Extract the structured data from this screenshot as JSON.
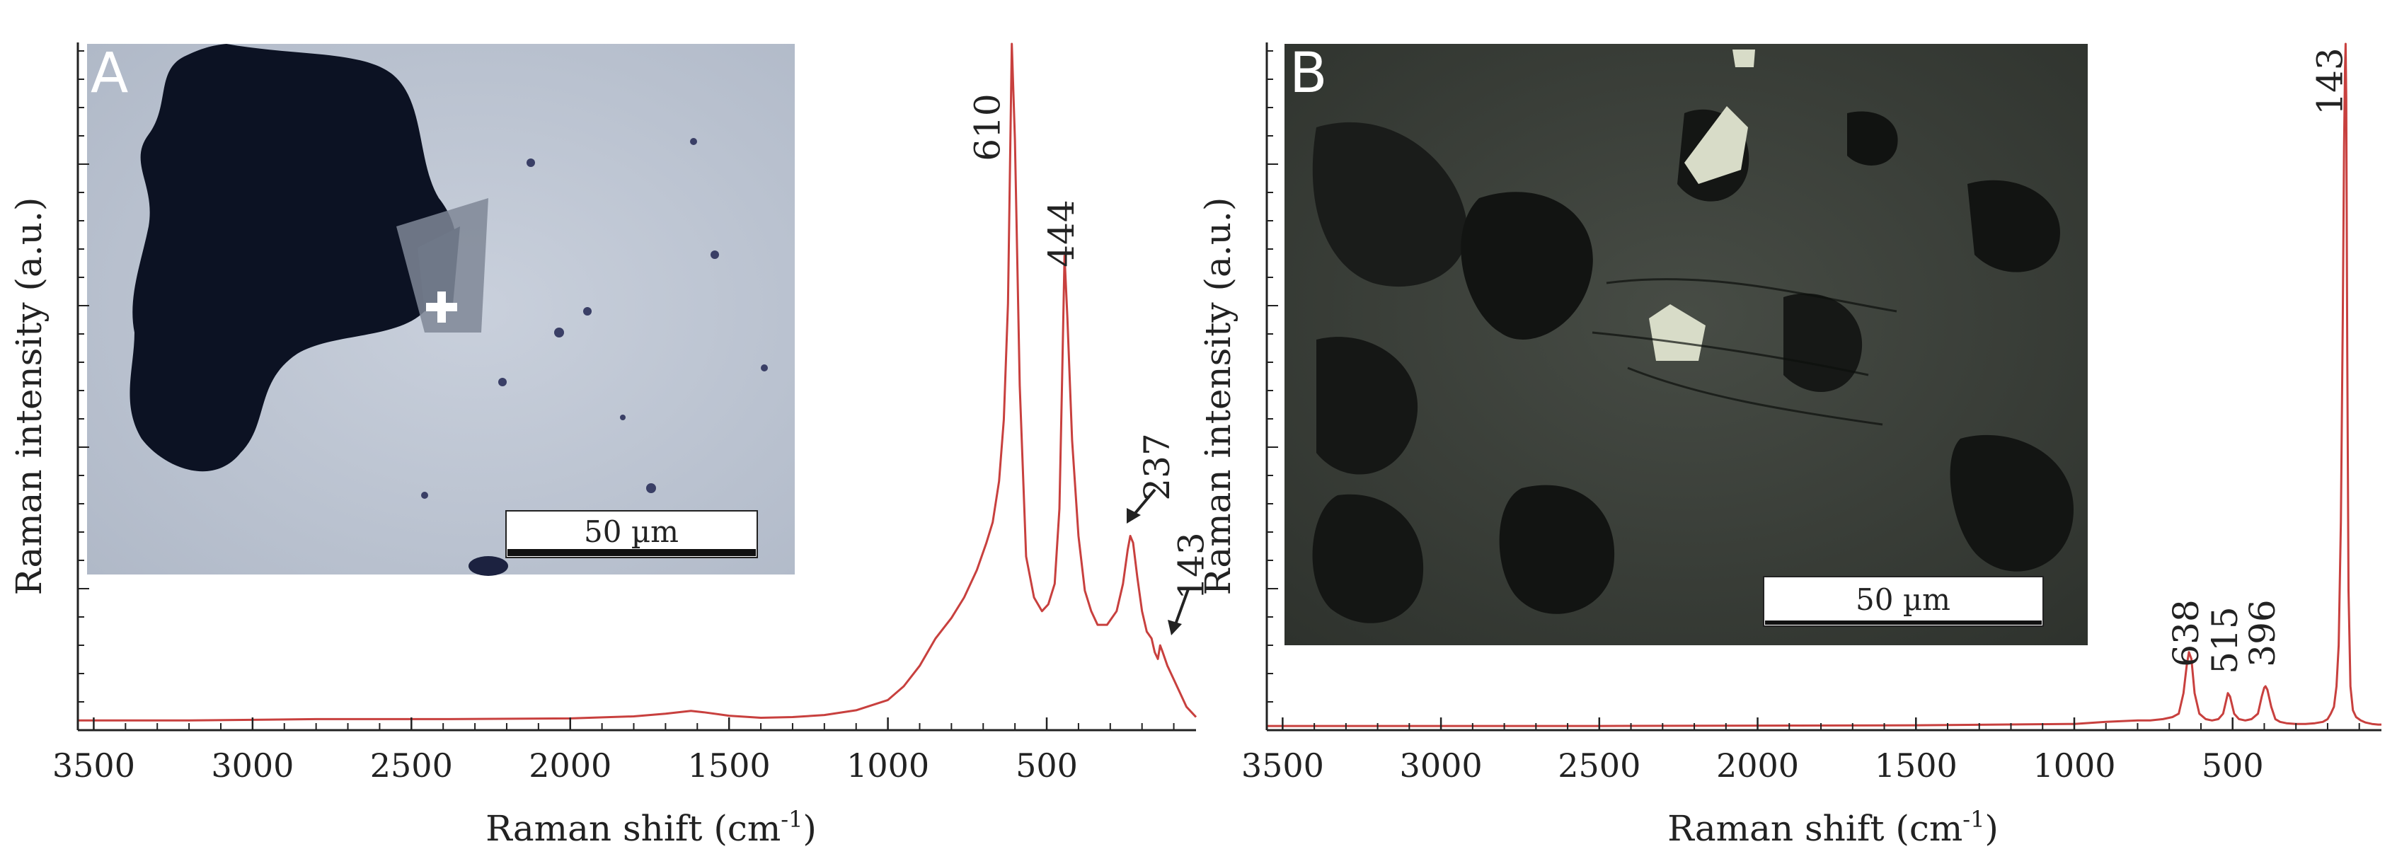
{
  "chart_data": [
    {
      "type": "line",
      "panel_label": "A",
      "xlabel_main": "Raman shift (cm",
      "xlabel_sup": "-1",
      "xlabel_tail": ")",
      "ylabel": "Raman intensity (a.u.)",
      "xlim": [
        3550,
        30
      ],
      "ylim": [
        0,
        1
      ],
      "xticks": [
        3500,
        3000,
        2500,
        2000,
        1500,
        1000,
        500
      ],
      "xtick_labels": [
        "3500",
        "3000",
        "2500",
        "2000",
        "1500",
        "1000",
        "500"
      ],
      "line_color": "#c8403e",
      "inset_scale_label": "50 µm",
      "peaks": [
        {
          "label": "610",
          "x": 610,
          "y": 1.0
        },
        {
          "label": "444",
          "x": 444,
          "y": 0.69
        },
        {
          "label": "237",
          "x": 237,
          "y": 0.28
        },
        {
          "label": "143",
          "x": 143,
          "y": 0.12
        }
      ],
      "series": [
        {
          "x": [
            3550,
            3200,
            2800,
            2400,
            2000,
            1800,
            1700,
            1620,
            1580,
            1500,
            1400,
            1300,
            1200,
            1100,
            1000,
            950,
            900,
            850,
            800,
            760,
            720,
            690,
            670,
            650,
            635,
            622,
            610,
            600,
            585,
            565,
            540,
            515,
            495,
            475,
            460,
            452,
            444,
            435,
            420,
            400,
            380,
            360,
            340,
            310,
            280,
            260,
            245,
            237,
            228,
            215,
            200,
            185,
            170,
            160,
            150,
            143,
            135,
            120,
            100,
            80,
            60,
            40,
            30
          ],
          "y": [
            0.01,
            0.01,
            0.012,
            0.012,
            0.013,
            0.016,
            0.02,
            0.024,
            0.022,
            0.017,
            0.014,
            0.015,
            0.018,
            0.025,
            0.04,
            0.06,
            0.09,
            0.13,
            0.16,
            0.19,
            0.23,
            0.27,
            0.3,
            0.36,
            0.45,
            0.62,
            1.0,
            0.86,
            0.5,
            0.25,
            0.19,
            0.17,
            0.18,
            0.21,
            0.32,
            0.5,
            0.69,
            0.6,
            0.42,
            0.28,
            0.2,
            0.17,
            0.15,
            0.15,
            0.17,
            0.21,
            0.26,
            0.28,
            0.27,
            0.22,
            0.17,
            0.14,
            0.13,
            0.11,
            0.1,
            0.12,
            0.11,
            0.09,
            0.07,
            0.05,
            0.03,
            0.02,
            0.015
          ]
        }
      ]
    },
    {
      "type": "line",
      "panel_label": "B",
      "xlabel_main": "Raman shift (cm",
      "xlabel_sup": "-1",
      "xlabel_tail": ")",
      "ylabel": "Raman intensity (a.u.)",
      "xlim": [
        3550,
        30
      ],
      "ylim": [
        0,
        1
      ],
      "xticks": [
        3500,
        3000,
        2500,
        2000,
        1500,
        1000,
        500
      ],
      "xtick_labels": [
        "3500",
        "3000",
        "2500",
        "2000",
        "1500",
        "1000",
        "500"
      ],
      "line_color": "#c8403e",
      "inset_scale_label": "50 µm",
      "peaks": [
        {
          "label": "638",
          "x": 638,
          "y": 0.11
        },
        {
          "label": "515",
          "x": 515,
          "y": 0.05
        },
        {
          "label": "396",
          "x": 396,
          "y": 0.06
        },
        {
          "label": "143",
          "x": 143,
          "y": 1.0
        }
      ],
      "series": [
        {
          "x": [
            3550,
            2500,
            1500,
            1000,
            900,
            850,
            800,
            760,
            720,
            690,
            670,
            655,
            645,
            638,
            630,
            620,
            605,
            585,
            565,
            545,
            530,
            520,
            515,
            508,
            495,
            480,
            460,
            440,
            420,
            408,
            400,
            396,
            390,
            378,
            365,
            350,
            330,
            300,
            270,
            240,
            215,
            200,
            190,
            180,
            172,
            165,
            158,
            152,
            148,
            145,
            143,
            141,
            138,
            134,
            128,
            120,
            110,
            95,
            80,
            60,
            40,
            30
          ],
          "y": [
            0.002,
            0.002,
            0.003,
            0.005,
            0.008,
            0.009,
            0.01,
            0.01,
            0.012,
            0.015,
            0.02,
            0.05,
            0.09,
            0.11,
            0.1,
            0.05,
            0.02,
            0.012,
            0.01,
            0.012,
            0.02,
            0.04,
            0.05,
            0.045,
            0.02,
            0.012,
            0.01,
            0.012,
            0.02,
            0.045,
            0.058,
            0.06,
            0.055,
            0.03,
            0.012,
            0.008,
            0.006,
            0.005,
            0.005,
            0.006,
            0.008,
            0.012,
            0.02,
            0.03,
            0.06,
            0.12,
            0.3,
            0.6,
            0.85,
            0.96,
            1.0,
            0.92,
            0.55,
            0.2,
            0.06,
            0.025,
            0.015,
            0.01,
            0.007,
            0.005,
            0.004,
            0.004
          ]
        }
      ]
    }
  ]
}
